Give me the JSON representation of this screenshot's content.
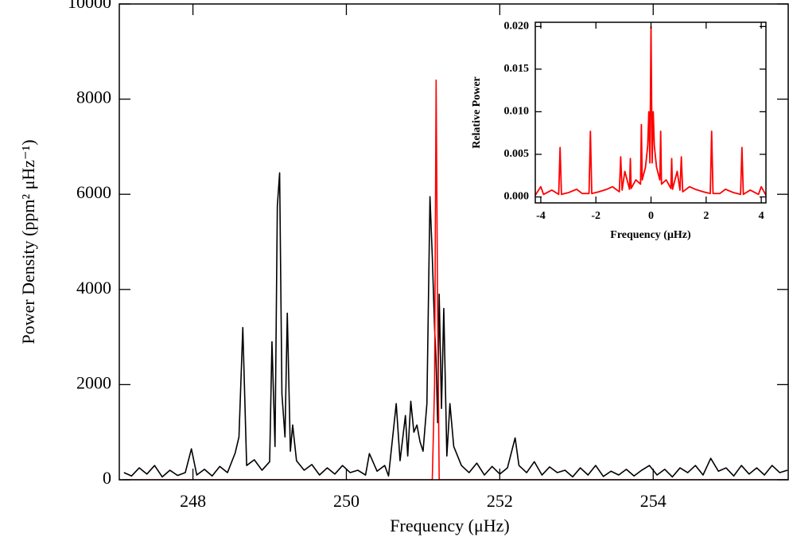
{
  "chart_data": [
    {
      "type": "line",
      "xlabel": "Frequency (μHz)",
      "ylabel": "Power Density (ppm² μHz⁻¹)",
      "xlim": [
        247.04,
        255.76
      ],
      "ylim": [
        0,
        10000
      ],
      "xticks": [
        248,
        250,
        252,
        254
      ],
      "yticks": [
        0,
        2000,
        4000,
        6000,
        8000,
        10000
      ],
      "x": [
        247.1,
        247.2,
        247.3,
        247.4,
        247.5,
        247.6,
        247.7,
        247.8,
        247.9,
        247.98,
        248.05,
        248.15,
        248.25,
        248.35,
        248.45,
        248.55,
        248.6,
        248.65,
        248.7,
        248.8,
        248.9,
        249.0,
        249.03,
        249.07,
        249.1,
        249.13,
        249.16,
        249.2,
        249.23,
        249.27,
        249.3,
        249.35,
        249.45,
        249.55,
        249.65,
        249.75,
        249.85,
        249.95,
        250.05,
        250.15,
        250.25,
        250.3,
        250.4,
        250.5,
        250.55,
        250.65,
        250.7,
        250.77,
        250.8,
        250.84,
        250.88,
        250.92,
        250.96,
        251.0,
        251.05,
        251.09,
        251.12,
        251.15,
        251.17,
        251.19,
        251.21,
        251.24,
        251.27,
        251.31,
        251.35,
        251.4,
        251.5,
        251.6,
        251.7,
        251.8,
        251.9,
        252.0,
        252.1,
        252.2,
        252.25,
        252.35,
        252.45,
        252.55,
        252.65,
        252.75,
        252.85,
        252.95,
        253.05,
        253.15,
        253.25,
        253.35,
        253.45,
        253.55,
        253.65,
        253.75,
        253.85,
        253.95,
        254.05,
        254.15,
        254.25,
        254.35,
        254.45,
        254.55,
        254.65,
        254.75,
        254.85,
        254.95,
        255.05,
        255.15,
        255.25,
        255.35,
        255.45,
        255.55,
        255.65,
        255.75
      ],
      "series": [
        {
          "color": "#000000",
          "values": [
            150,
            80,
            250,
            120,
            300,
            60,
            200,
            90,
            150,
            650,
            100,
            220,
            80,
            280,
            150,
            560,
            900,
            3200,
            300,
            420,
            200,
            380,
            2900,
            700,
            5750,
            6450,
            1800,
            900,
            3500,
            600,
            1150,
            400,
            200,
            320,
            100,
            250,
            120,
            300,
            150,
            200,
            100,
            550,
            180,
            300,
            80,
            1600,
            400,
            1350,
            500,
            1650,
            1000,
            1150,
            800,
            600,
            1600,
            5950,
            4700,
            3200,
            2500,
            1200,
            3900,
            1500,
            3600,
            500,
            1600,
            700,
            300,
            150,
            350,
            100,
            280,
            120,
            250,
            880,
            300,
            150,
            380,
            100,
            270,
            150,
            200,
            60,
            250,
            100,
            300,
            70,
            180,
            100,
            220,
            80,
            200,
            300,
            100,
            220,
            60,
            250,
            150,
            300,
            100,
            450,
            180,
            250,
            80,
            300,
            120,
            250,
            100,
            300,
            150,
            200
          ]
        },
        {
          "color": "#ff0000",
          "values": [
            0,
            0,
            0,
            0,
            0,
            0,
            0,
            0,
            0,
            0,
            0,
            0,
            0,
            0,
            0,
            0,
            0,
            0,
            0,
            0,
            0,
            0,
            0,
            0,
            0,
            0,
            0,
            0,
            0,
            0,
            0,
            0,
            0,
            0,
            0,
            0,
            0,
            0,
            0,
            0,
            0,
            0,
            0,
            0,
            0,
            0,
            0,
            0,
            0,
            0,
            0,
            0,
            0,
            0,
            0,
            0,
            0,
            2000,
            8400,
            3500,
            0,
            0,
            0,
            0,
            0,
            0,
            0,
            0,
            0,
            0,
            0,
            0,
            0,
            0,
            0,
            0,
            0,
            0,
            0,
            0,
            0,
            0,
            0,
            0,
            0,
            0,
            0,
            0,
            0,
            0,
            0,
            0,
            0,
            0,
            0,
            0,
            0,
            0,
            0,
            0,
            0,
            0,
            0,
            0,
            0,
            0,
            0,
            0,
            0,
            0
          ]
        }
      ]
    },
    {
      "type": "line",
      "xlabel": "Frequency (μHz)",
      "ylabel": "Relative Power",
      "xlim": [
        -4.2,
        4.17
      ],
      "ylim": [
        -0.0007,
        0.0205
      ],
      "xticks": [
        -4,
        -2,
        0,
        2,
        4
      ],
      "yticks": [
        {
          "value": 0,
          "label": "0.000"
        },
        {
          "value": 0.005,
          "label": "0.005"
        },
        {
          "value": 0.01,
          "label": "0.010"
        },
        {
          "value": 0.015,
          "label": "0.015"
        },
        {
          "value": 0.02,
          "label": "0.020"
        }
      ],
      "x": [
        -4.2,
        -4.0,
        -3.9,
        -3.6,
        -3.35,
        -3.3,
        -3.25,
        -3.0,
        -2.7,
        -2.5,
        -2.25,
        -2.2,
        -2.15,
        -1.9,
        -1.6,
        -1.4,
        -1.15,
        -1.1,
        -1.05,
        -0.95,
        -0.78,
        -0.75,
        -0.72,
        -0.55,
        -0.38,
        -0.35,
        -0.32,
        -0.2,
        -0.12,
        -0.08,
        -0.04,
        0,
        0.04,
        0.08,
        0.12,
        0.2,
        0.32,
        0.35,
        0.38,
        0.55,
        0.72,
        0.75,
        0.78,
        0.95,
        1.05,
        1.1,
        1.15,
        1.4,
        1.6,
        1.9,
        2.15,
        2.2,
        2.25,
        2.5,
        2.7,
        3.0,
        3.25,
        3.3,
        3.35,
        3.6,
        3.9,
        4.0,
        4.17
      ],
      "series": [
        {
          "color": "#ff0000",
          "values": [
            0.0002,
            0.0012,
            0.0003,
            0.0008,
            0.0003,
            0.0058,
            0.0003,
            0.0005,
            0.0009,
            0.0004,
            0.0004,
            0.0077,
            0.0004,
            0.0006,
            0.0009,
            0.0012,
            0.0006,
            0.0047,
            0.0008,
            0.003,
            0.0009,
            0.0045,
            0.001,
            0.002,
            0.0015,
            0.0085,
            0.002,
            0.0035,
            0.006,
            0.01,
            0.004,
            0.02,
            0.004,
            0.01,
            0.006,
            0.0035,
            0.002,
            0.0077,
            0.0015,
            0.002,
            0.001,
            0.0045,
            0.0009,
            0.003,
            0.0008,
            0.0047,
            0.0006,
            0.0012,
            0.0009,
            0.0006,
            0.0004,
            0.0077,
            0.0004,
            0.0004,
            0.0009,
            0.0005,
            0.0003,
            0.0058,
            0.0003,
            0.0008,
            0.0003,
            0.0012,
            0.0002
          ]
        }
      ]
    }
  ]
}
